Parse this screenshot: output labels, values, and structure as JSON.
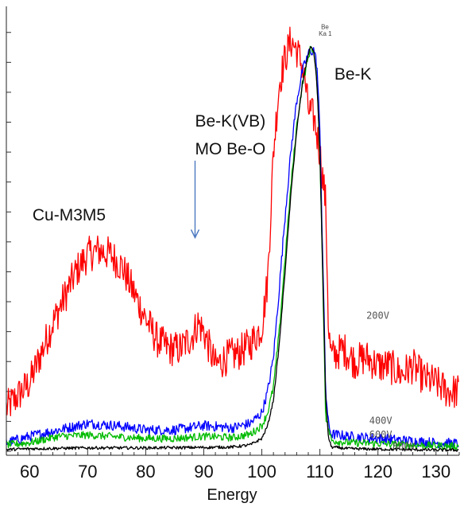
{
  "chart_data": {
    "type": "line",
    "title": "",
    "xlabel": "Energy",
    "ylabel": "",
    "xlim": [
      56,
      134
    ],
    "ylim": [
      0,
      100
    ],
    "x_ticks": [
      60,
      70,
      80,
      90,
      100,
      110,
      120,
      130
    ],
    "grid": false,
    "series": [
      {
        "name": "200V",
        "color": "#ff0000",
        "noise": 4.2,
        "points": [
          [
            56,
            10
          ],
          [
            60,
            16
          ],
          [
            64,
            30
          ],
          [
            68,
            42
          ],
          [
            70,
            46
          ],
          [
            72,
            47
          ],
          [
            74,
            46
          ],
          [
            76,
            43
          ],
          [
            78,
            37
          ],
          [
            80,
            31
          ],
          [
            82,
            26
          ],
          [
            84,
            24
          ],
          [
            86,
            24
          ],
          [
            88,
            27
          ],
          [
            89,
            30
          ],
          [
            90,
            28
          ],
          [
            92,
            20
          ],
          [
            94,
            22
          ],
          [
            96,
            23
          ],
          [
            98,
            25
          ],
          [
            100,
            29
          ],
          [
            101,
            40
          ],
          [
            102,
            70
          ],
          [
            103,
            86
          ],
          [
            104,
            92
          ],
          [
            105,
            96
          ],
          [
            106,
            94
          ],
          [
            107,
            90
          ],
          [
            107.5,
            86
          ],
          [
            108,
            80
          ],
          [
            109,
            78
          ],
          [
            110,
            70
          ],
          [
            111,
            58
          ],
          [
            111.5,
            28
          ],
          [
            112,
            22
          ],
          [
            114,
            24
          ],
          [
            116,
            21
          ],
          [
            118,
            22
          ],
          [
            120,
            20
          ],
          [
            122,
            20
          ],
          [
            124,
            18
          ],
          [
            126,
            20
          ],
          [
            128,
            17
          ],
          [
            130,
            16
          ],
          [
            132,
            14
          ],
          [
            134,
            14
          ]
        ]
      },
      {
        "name": "400V",
        "color": "#0000ff",
        "noise": 1.2,
        "points": [
          [
            56,
            2
          ],
          [
            60,
            3.5
          ],
          [
            65,
            5
          ],
          [
            70,
            6.5
          ],
          [
            75,
            6
          ],
          [
            80,
            5
          ],
          [
            85,
            5
          ],
          [
            90,
            6
          ],
          [
            95,
            5.5
          ],
          [
            98,
            6.5
          ],
          [
            100,
            9
          ],
          [
            101,
            14
          ],
          [
            102,
            22
          ],
          [
            103,
            38
          ],
          [
            104,
            55
          ],
          [
            105,
            70
          ],
          [
            106,
            82
          ],
          [
            107,
            89
          ],
          [
            108,
            93
          ],
          [
            109,
            94
          ],
          [
            109.5,
            90
          ],
          [
            110,
            75
          ],
          [
            110.5,
            45
          ],
          [
            111,
            14
          ],
          [
            111.5,
            6
          ],
          [
            112,
            4
          ],
          [
            115,
            3.5
          ],
          [
            120,
            3
          ],
          [
            125,
            2.5
          ],
          [
            130,
            2
          ],
          [
            134,
            1.8
          ]
        ]
      },
      {
        "name": "600V",
        "color": "#00bb00",
        "noise": 0.9,
        "points": [
          [
            56,
            1.5
          ],
          [
            60,
            2
          ],
          [
            65,
            3.5
          ],
          [
            70,
            3.8
          ],
          [
            75,
            3.4
          ],
          [
            80,
            3
          ],
          [
            85,
            3
          ],
          [
            90,
            3.5
          ],
          [
            95,
            3.2
          ],
          [
            98,
            4
          ],
          [
            100,
            6
          ],
          [
            101,
            9
          ],
          [
            102,
            15
          ],
          [
            103,
            28
          ],
          [
            104,
            45
          ],
          [
            105,
            62
          ],
          [
            106,
            76
          ],
          [
            107,
            86
          ],
          [
            108,
            92
          ],
          [
            108.5,
            95
          ],
          [
            109,
            93
          ],
          [
            109.5,
            86
          ],
          [
            110,
            70
          ],
          [
            110.5,
            40
          ],
          [
            111,
            8
          ],
          [
            112,
            2.5
          ],
          [
            115,
            2
          ],
          [
            120,
            1.8
          ],
          [
            125,
            1.5
          ],
          [
            130,
            1.3
          ],
          [
            134,
            1.2
          ]
        ]
      },
      {
        "name": "800V",
        "color": "#000000",
        "noise": 0.35,
        "points": [
          [
            56,
            0.4
          ],
          [
            60,
            0.6
          ],
          [
            70,
            0.8
          ],
          [
            80,
            0.8
          ],
          [
            90,
            0.9
          ],
          [
            95,
            1
          ],
          [
            98,
            1.5
          ],
          [
            100,
            3
          ],
          [
            101,
            6
          ],
          [
            102,
            12
          ],
          [
            103,
            25
          ],
          [
            104,
            42
          ],
          [
            105,
            60
          ],
          [
            106,
            75
          ],
          [
            107,
            86
          ],
          [
            108,
            93
          ],
          [
            108.5,
            95
          ],
          [
            109,
            93
          ],
          [
            109.5,
            86
          ],
          [
            110,
            70
          ],
          [
            110.5,
            42
          ],
          [
            111,
            12
          ],
          [
            111.5,
            3
          ],
          [
            112,
            1
          ],
          [
            115,
            0.6
          ],
          [
            120,
            0.5
          ],
          [
            125,
            0.4
          ],
          [
            130,
            0.3
          ],
          [
            134,
            0.3
          ]
        ]
      }
    ],
    "annotations": [
      {
        "text": "Cu-M3M5",
        "x": 60.5,
        "y": 54,
        "style": "big"
      },
      {
        "text": "Be-K(VB)",
        "x": 88.5,
        "y": 76,
        "style": "big"
      },
      {
        "text": "MO Be-O",
        "x": 88.5,
        "y": 69.5,
        "style": "big"
      },
      {
        "text": "Be-K",
        "x": 112.5,
        "y": 87,
        "style": "big"
      },
      {
        "text": "200V",
        "x": 118,
        "y": 31,
        "style": "small"
      },
      {
        "text": "400V",
        "x": 118.5,
        "y": 6.4,
        "style": "small"
      },
      {
        "text": "600V",
        "x": 118.5,
        "y": 3.2,
        "style": "small"
      },
      {
        "text": "800V",
        "x": 122.5,
        "y": 0.4,
        "style": "small"
      },
      {
        "text": "Be",
        "x": 110.2,
        "y": 98.8,
        "style": "tiny"
      },
      {
        "text": "Ka 1",
        "x": 109.8,
        "y": 97.2,
        "style": "tiny"
      }
    ],
    "arrow": {
      "from": [
        88.5,
        68
      ],
      "to": [
        88.5,
        50
      ]
    }
  }
}
